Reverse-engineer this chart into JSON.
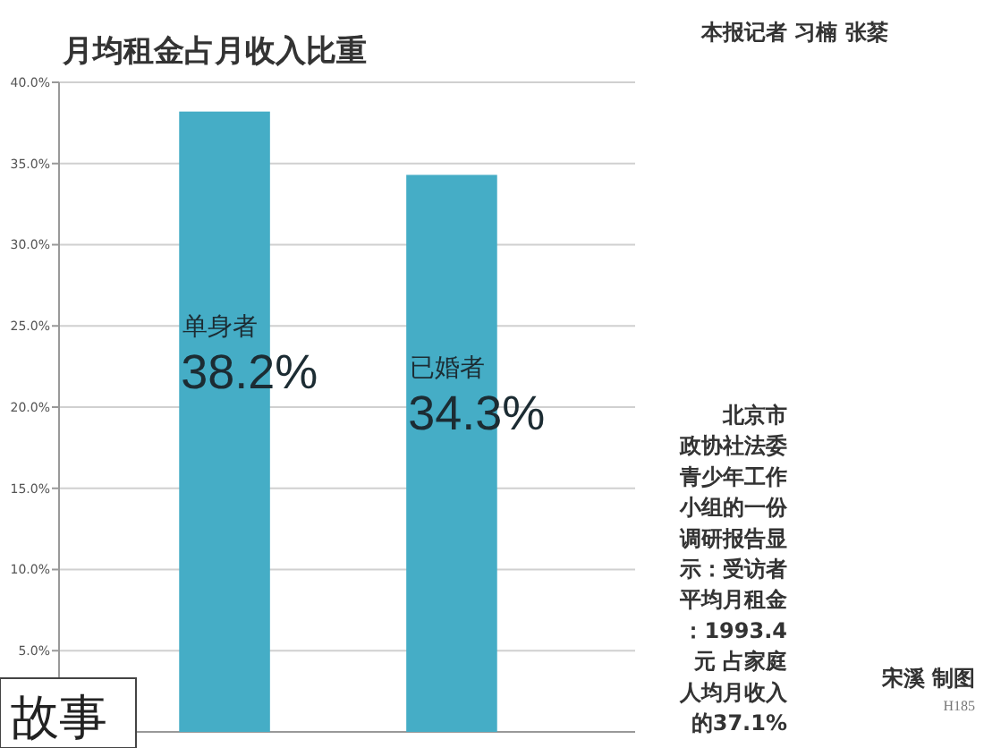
{
  "chart_data": {
    "type": "bar",
    "title": "月均租金占月收入比重",
    "categories": [
      "单身者",
      "已婚者"
    ],
    "values": [
      38.2,
      34.3
    ],
    "value_labels": [
      "38.2%",
      "34.3%"
    ],
    "color": "#45adc6",
    "ylim": [
      0,
      40
    ],
    "yticks": [
      {
        "value": 5,
        "label": "5.0%"
      },
      {
        "value": 10,
        "label": "10.0%"
      },
      {
        "value": 15,
        "label": "15.0%"
      },
      {
        "value": 20,
        "label": "20.0%"
      },
      {
        "value": 25,
        "label": "25.0%"
      },
      {
        "value": 30,
        "label": "30.0%"
      },
      {
        "value": 35,
        "label": "35.0%"
      },
      {
        "value": 40,
        "label": "40.0%"
      }
    ],
    "grid": "y",
    "annotations": [
      "本报记者 习楠 张棻",
      "北京市政协社法委青少年工作小组的一份调研报告显示：受访者平均月租金：1993.4元 占家庭人均月收入的37.1%",
      "宋溪 制图",
      "H185",
      "故事"
    ]
  }
}
